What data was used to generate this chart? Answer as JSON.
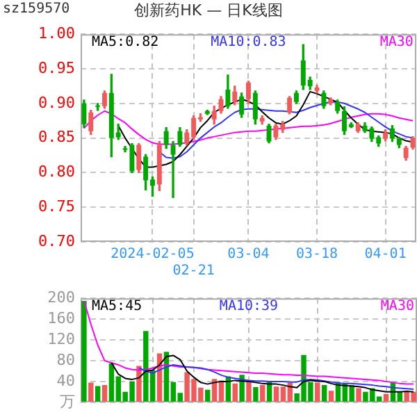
{
  "chart_data": [
    {
      "type": "candlestick",
      "title": "创新药HK — 日K线图",
      "annotations": [
        "sz159570"
      ],
      "categories": [
        null,
        null,
        null,
        null,
        null,
        null,
        null,
        null,
        null,
        null,
        "2024-02-05",
        null,
        null,
        null,
        null,
        null,
        "02-21",
        null,
        null,
        null,
        null,
        null,
        null,
        null,
        "03-04",
        null,
        null,
        null,
        null,
        null,
        null,
        null,
        null,
        null,
        "03-18",
        null,
        null,
        null,
        null,
        null,
        null,
        null,
        null,
        null,
        "04-01",
        null,
        null,
        null,
        null
      ],
      "ohlc": [
        [
          0.9,
          0.905,
          0.865,
          0.87
        ],
        [
          0.86,
          0.89,
          0.855,
          0.887
        ],
        [
          0.897,
          0.9,
          0.89,
          0.895
        ],
        [
          0.896,
          0.918,
          0.893,
          0.915
        ],
        [
          0.915,
          0.942,
          0.823,
          0.85
        ],
        [
          0.858,
          0.87,
          0.848,
          0.851
        ],
        [
          0.835,
          0.838,
          0.83,
          0.833
        ],
        [
          0.84,
          0.842,
          0.8,
          0.802
        ],
        [
          0.804,
          0.842,
          0.8,
          0.84
        ],
        [
          0.823,
          0.826,
          0.775,
          0.789
        ],
        [
          0.79,
          0.794,
          0.766,
          0.781
        ],
        [
          0.783,
          0.845,
          0.774,
          0.84
        ],
        [
          0.86,
          0.865,
          0.835,
          0.84
        ],
        [
          0.84,
          0.845,
          0.764,
          0.826
        ],
        [
          0.86,
          0.865,
          0.838,
          0.84
        ],
        [
          0.842,
          0.862,
          0.84,
          0.858
        ],
        [
          0.851,
          0.882,
          0.848,
          0.879
        ],
        [
          0.877,
          0.885,
          0.874,
          0.88
        ],
        [
          0.889,
          0.89,
          0.884,
          0.885
        ],
        [
          0.877,
          0.896,
          0.87,
          0.889
        ],
        [
          0.889,
          0.91,
          0.886,
          0.906
        ],
        [
          0.92,
          0.941,
          0.893,
          0.896
        ],
        [
          0.902,
          0.925,
          0.898,
          0.917
        ],
        [
          0.91,
          0.915,
          0.88,
          0.884
        ],
        [
          0.906,
          0.932,
          0.9,
          0.93
        ],
        [
          0.915,
          0.918,
          0.87,
          0.877
        ],
        [
          0.874,
          0.882,
          0.87,
          0.879
        ],
        [
          0.868,
          0.87,
          0.843,
          0.845
        ],
        [
          0.851,
          0.87,
          0.848,
          0.868
        ],
        [
          0.862,
          0.874,
          0.858,
          0.87
        ],
        [
          0.887,
          0.91,
          0.885,
          0.908
        ],
        [
          0.915,
          0.918,
          0.9,
          0.902
        ],
        [
          0.962,
          0.985,
          0.92,
          0.926
        ],
        [
          0.934,
          0.938,
          0.92,
          0.925
        ],
        [
          0.918,
          0.926,
          0.915,
          0.923
        ],
        [
          0.915,
          0.918,
          0.893,
          0.896
        ],
        [
          0.9,
          0.908,
          0.898,
          0.906
        ],
        [
          0.902,
          0.905,
          0.886,
          0.889
        ],
        [
          0.889,
          0.895,
          0.855,
          0.86
        ],
        [
          0.87,
          0.872,
          0.865,
          0.866
        ],
        [
          0.86,
          0.872,
          0.858,
          0.87
        ],
        [
          0.868,
          0.872,
          0.858,
          0.86
        ],
        [
          0.864,
          0.866,
          0.845,
          0.849
        ],
        [
          0.851,
          0.853,
          0.838,
          0.842
        ],
        [
          0.849,
          0.862,
          0.846,
          0.858
        ],
        [
          0.864,
          0.868,
          0.845,
          0.849
        ],
        [
          0.849,
          0.851,
          0.836,
          0.84
        ],
        [
          0.821,
          0.838,
          0.818,
          0.836
        ],
        [
          0.836,
          0.852,
          0.834,
          0.85
        ]
      ],
      "colors": [
        "#00a800",
        "#f05a5a",
        "#00a800",
        "#f05a5a",
        "#00a800",
        "#00a800",
        "#00a800",
        "#00a800",
        "#f05a5a",
        "#00a800",
        "#00a800",
        "#f05a5a",
        "#00a800",
        "#00a800",
        "#00a800",
        "#f05a5a",
        "#f05a5a",
        "#f05a5a",
        "#00a800",
        "#f05a5a",
        "#f05a5a",
        "#00a800",
        "#f05a5a",
        "#00a800",
        "#f05a5a",
        "#00a800",
        "#f05a5a",
        "#00a800",
        "#f05a5a",
        "#f05a5a",
        "#f05a5a",
        "#00a800",
        "#00a800",
        "#00a800",
        "#f05a5a",
        "#00a800",
        "#f05a5a",
        "#00a800",
        "#00a800",
        "#00a800",
        "#f05a5a",
        "#00a800",
        "#00a800",
        "#00a800",
        "#f05a5a",
        "#00a800",
        "#00a800",
        "#f05a5a",
        "#f05a5a"
      ],
      "series": [
        {
          "name": "MA5:0.82",
          "type": "line",
          "color": "#000000",
          "values": [
            null,
            null,
            null,
            null,
            null,
            0.868,
            0.85,
            0.835,
            0.82,
            0.808,
            0.808,
            0.81,
            0.812,
            0.816,
            0.826,
            0.838,
            0.85,
            0.865,
            0.875,
            0.887,
            0.893,
            0.898,
            0.902,
            0.906,
            0.903,
            0.898,
            0.888,
            0.879,
            0.872,
            0.87,
            0.875,
            0.882,
            0.898,
            0.917,
            0.914,
            0.91,
            0.906,
            0.902,
            0.89,
            0.879,
            0.87,
            0.862,
            0.86,
            0.859,
            0.858,
            0.856,
            0.85,
            0.846,
            0.844
          ]
        },
        {
          "name": "MA10:0.83",
          "type": "line",
          "color": "#3333ff",
          "values": [
            null,
            null,
            null,
            null,
            null,
            null,
            null,
            null,
            null,
            null,
            null,
            0.83,
            0.822,
            0.821,
            0.823,
            0.83,
            0.84,
            0.85,
            0.858,
            0.866,
            0.872,
            0.88,
            0.887,
            0.891,
            0.892,
            0.892,
            0.891,
            0.89,
            0.889,
            0.889,
            0.888,
            0.887,
            0.89,
            0.894,
            0.897,
            0.9,
            0.902,
            0.902,
            0.9,
            0.896,
            0.892,
            0.887,
            0.88,
            0.873,
            0.866,
            0.86,
            0.856,
            0.852,
            0.85
          ]
        },
        {
          "name": "MA30",
          "type": "line",
          "color": "#ff00ff",
          "values": [
            0.864,
            0.875,
            0.883,
            0.889,
            0.885,
            0.878,
            0.872,
            0.863,
            0.855,
            0.848,
            0.843,
            0.841,
            0.841,
            0.841,
            0.842,
            0.843,
            0.845,
            0.847,
            0.85,
            0.852,
            0.854,
            0.856,
            0.858,
            0.859,
            0.86,
            0.86,
            0.861,
            0.862,
            0.863,
            0.864,
            0.865,
            0.866,
            0.867,
            0.867,
            0.868,
            0.869,
            0.871,
            0.874,
            0.877,
            0.88,
            0.882,
            0.884,
            0.885,
            0.885,
            0.884,
            0.882,
            0.879,
            0.877,
            0.875
          ]
        }
      ],
      "ylim": [
        0.7,
        1.0
      ],
      "yticks": [
        {
          "value": 0.7,
          "label": "0.70"
        },
        {
          "value": 0.75,
          "label": "0.75"
        },
        {
          "value": 0.8,
          "label": "0.80"
        },
        {
          "value": 0.85,
          "label": "0.85"
        },
        {
          "value": 0.9,
          "label": "0.90"
        },
        {
          "value": 0.95,
          "label": "0.95"
        },
        {
          "value": 1.0,
          "label": "1.00"
        }
      ],
      "grid": true,
      "legend": "top",
      "marker": "none"
    },
    {
      "type": "bar",
      "categories": [
        null,
        null,
        null,
        null,
        null,
        null,
        null,
        null,
        null,
        null,
        null,
        null,
        null,
        null,
        null,
        null,
        null,
        null,
        null,
        null,
        null,
        null,
        null,
        null,
        null,
        null,
        null,
        null,
        null,
        null,
        null,
        null,
        null,
        null,
        null,
        null,
        null,
        null,
        null,
        null,
        null,
        null,
        null,
        null,
        null,
        null,
        null,
        null,
        null
      ],
      "values": [
        195,
        38,
        31,
        33,
        75,
        50,
        20,
        40,
        70,
        137,
        62,
        94,
        97,
        39,
        18,
        58,
        45,
        28,
        24,
        45,
        42,
        50,
        36,
        53,
        41,
        29,
        33,
        39,
        30,
        30,
        37,
        17,
        91,
        39,
        38,
        33,
        22,
        39,
        36,
        33,
        27,
        20,
        27,
        11,
        16,
        39,
        20,
        20,
        20
      ],
      "colors": [
        "#00a800",
        "#f05a5a",
        "#00a800",
        "#f05a5a",
        "#00a800",
        "#00a800",
        "#00a800",
        "#00a800",
        "#f05a5a",
        "#00a800",
        "#00a800",
        "#f05a5a",
        "#00a800",
        "#00a800",
        "#00a800",
        "#f05a5a",
        "#f05a5a",
        "#f05a5a",
        "#00a800",
        "#f05a5a",
        "#f05a5a",
        "#00a800",
        "#f05a5a",
        "#00a800",
        "#f05a5a",
        "#00a800",
        "#f05a5a",
        "#00a800",
        "#f05a5a",
        "#f05a5a",
        "#f05a5a",
        "#00a800",
        "#00a800",
        "#00a800",
        "#f05a5a",
        "#00a800",
        "#f05a5a",
        "#00a800",
        "#00a800",
        "#00a800",
        "#f05a5a",
        "#00a800",
        "#00a800",
        "#00a800",
        "#f05a5a",
        "#00a800",
        "#00a800",
        "#f05a5a",
        "#f05a5a"
      ],
      "series": [
        {
          "name": "MA5:45",
          "type": "line",
          "color": "#000000",
          "values": [
            null,
            null,
            null,
            null,
            76,
            54,
            46,
            44,
            47,
            60,
            62,
            72,
            88,
            90,
            82,
            60,
            48,
            38,
            35,
            38,
            40,
            40,
            42,
            41,
            40,
            38,
            36,
            35,
            35,
            33,
            30,
            28,
            40,
            42,
            41,
            40,
            36,
            33,
            32,
            31,
            30,
            28,
            24,
            22,
            20,
            20,
            20,
            21,
            20
          ]
        },
        {
          "name": "MA10:39",
          "type": "line",
          "color": "#3333ff",
          "values": [
            null,
            null,
            null,
            null,
            null,
            null,
            null,
            null,
            66,
            60,
            56,
            62,
            68,
            72,
            70,
            68,
            67,
            66,
            63,
            58,
            52,
            48,
            46,
            44,
            42,
            41,
            41,
            40,
            40,
            40,
            39,
            39,
            43,
            44,
            43,
            41,
            39,
            37,
            36,
            36,
            35,
            34,
            33,
            31,
            30,
            28,
            27,
            26,
            25
          ]
        },
        {
          "name": "MA30",
          "type": "line",
          "color": "#ff00ff",
          "values": [
            195,
            150,
            110,
            80,
            76,
            72,
            66,
            63,
            62,
            63,
            66,
            70,
            72,
            70,
            68,
            68,
            67,
            65,
            63,
            62,
            61,
            60,
            59,
            58,
            57,
            56,
            56,
            55,
            54,
            53,
            53,
            52,
            52,
            51,
            50,
            50,
            49,
            48,
            47,
            46,
            45,
            44,
            43,
            42,
            40,
            38,
            36,
            35,
            35
          ]
        }
      ],
      "ylim": [
        0,
        200
      ],
      "yticks": [
        {
          "value": 0,
          "label": "万"
        },
        40,
        80,
        120,
        160,
        200
      ],
      "grid": true,
      "legend": "top",
      "tick_labels": "y",
      "marker": "none"
    }
  ]
}
